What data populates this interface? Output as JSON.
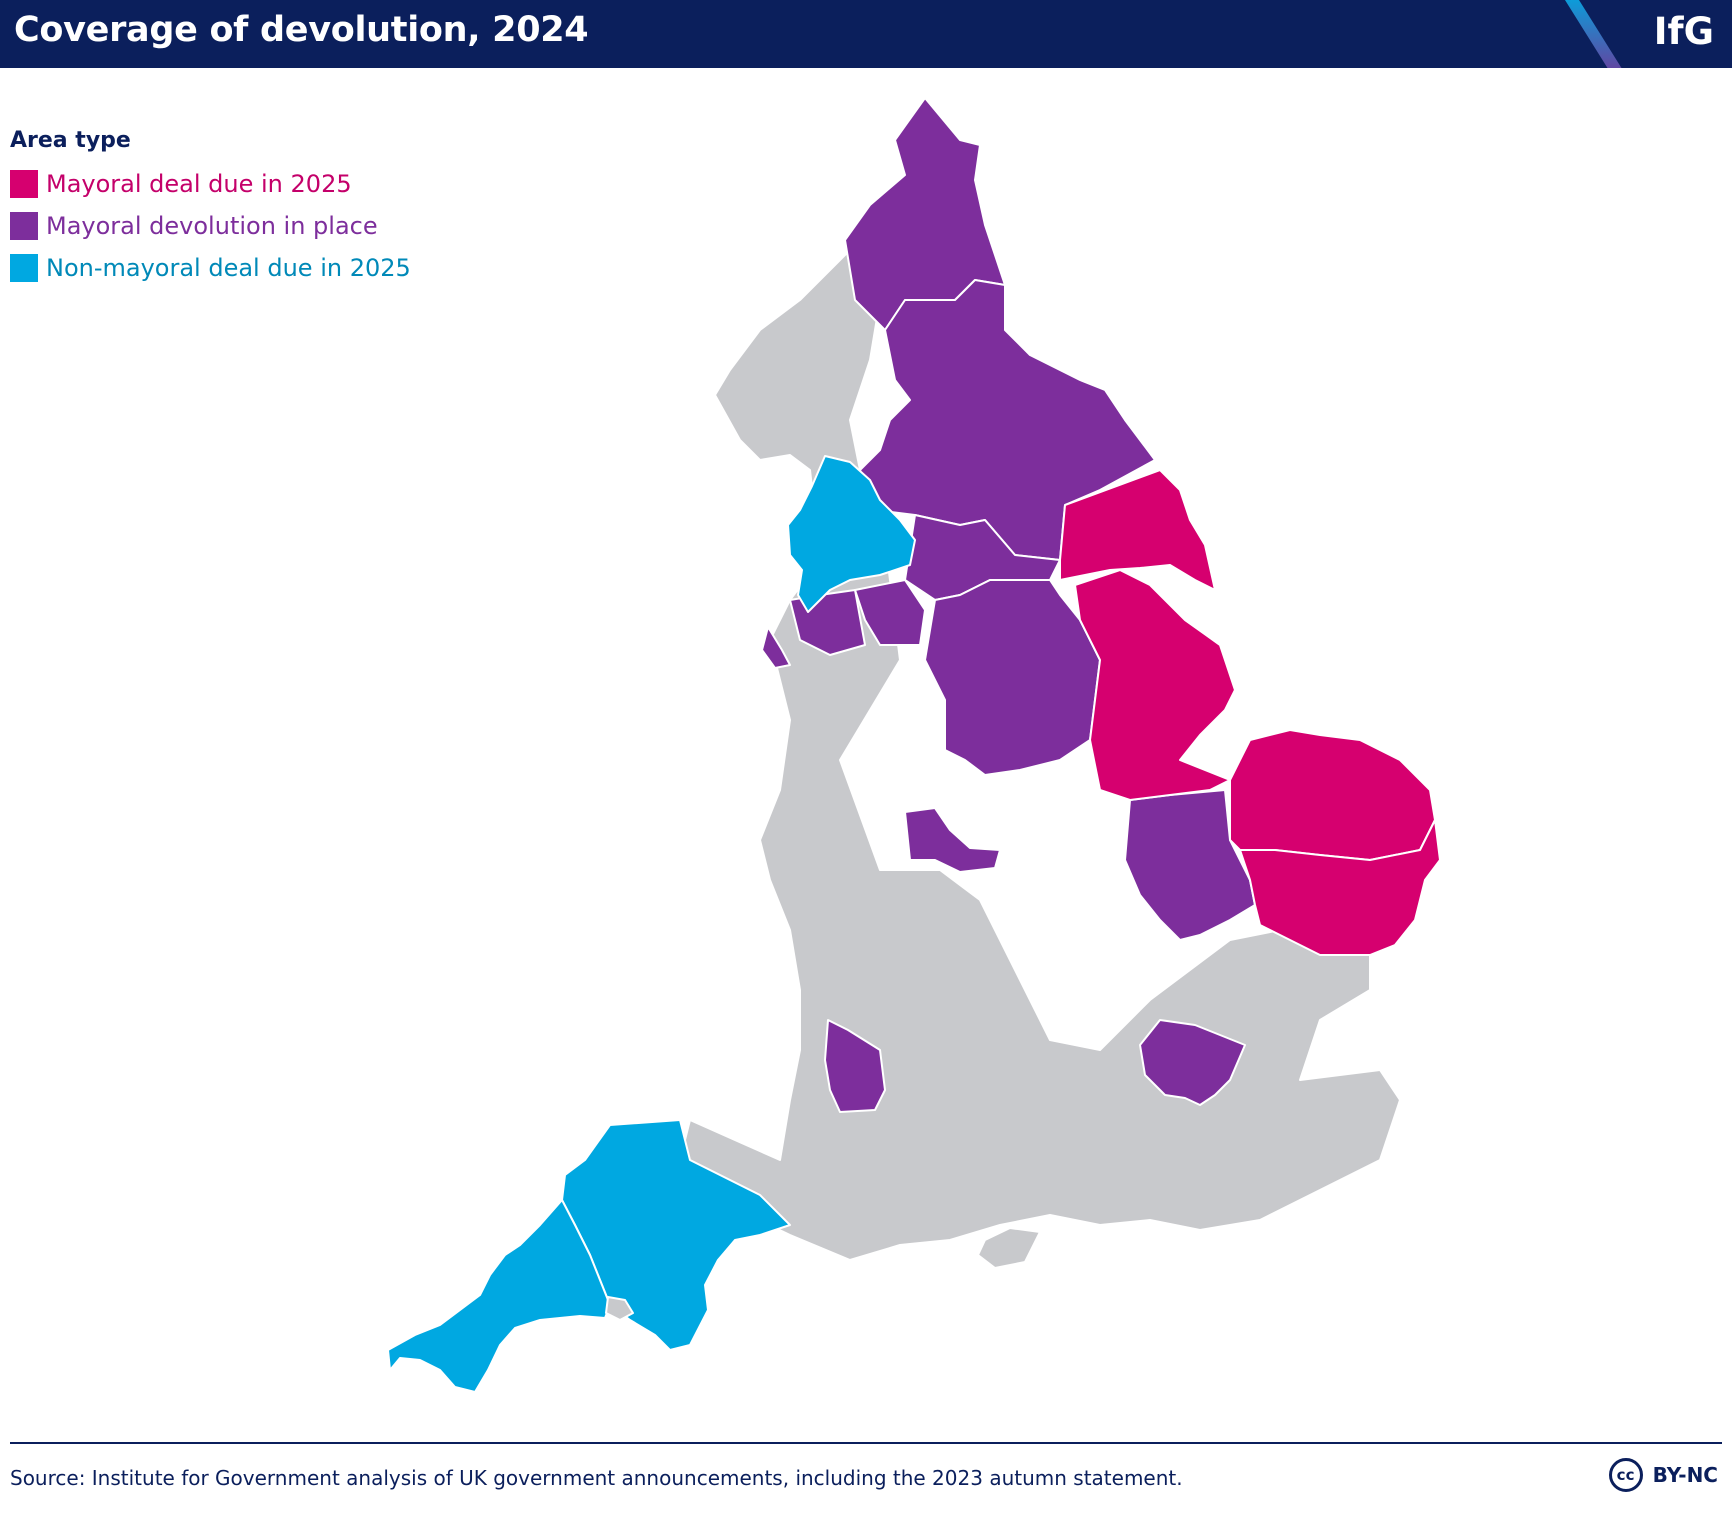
{
  "header": {
    "title": "Coverage of devolution, 2024",
    "logo": "IfG"
  },
  "legend": {
    "title": "Area type",
    "items": [
      {
        "label": "Mayoral deal due in 2025",
        "color": "#d6006f",
        "text_color": "#c4006a"
      },
      {
        "label": "Mayoral devolution in place",
        "color": "#7d2e9c",
        "text_color": "#7d2e9c"
      },
      {
        "label": "Non-mayoral deal due in 2025",
        "color": "#00a8e1",
        "text_color": "#0089b8"
      }
    ]
  },
  "map": {
    "colors": {
      "mayoral_deal_2025": "#d6006f",
      "mayoral_in_place": "#7d2e9c",
      "non_mayoral_2025": "#00a8e1",
      "other": "#c8c9cc",
      "border": "#ffffff"
    }
  },
  "footer": {
    "source": "Source: Institute for Government analysis of UK government announcements, including the 2023 autumn statement.",
    "license_icon": "cc",
    "license": "BY-NC"
  }
}
